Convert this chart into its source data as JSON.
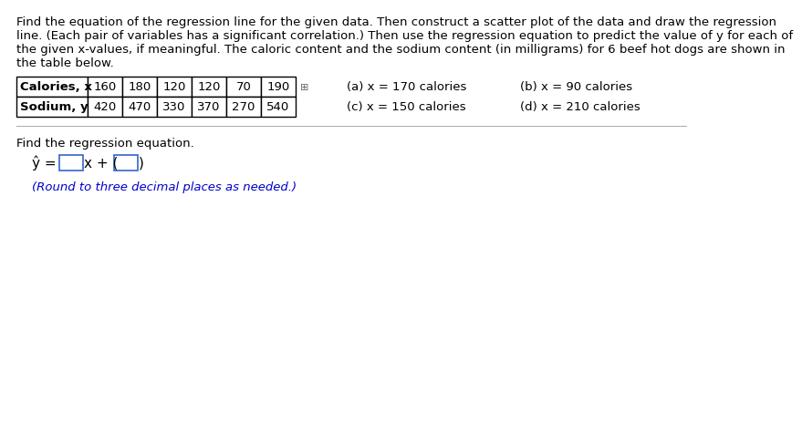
{
  "para_line1": "Find the equation of the regression line for the given data. Then construct a scatter plot of the data and draw the regression",
  "para_line2": "line. (Each pair of variables has a significant correlation.) Then use the regression equation to predict the value of y for each of",
  "para_line3": "the given x-values, if meaningful. The caloric content and the sodium content (in milligrams) for 6 beef hot dogs are shown in",
  "para_line4": "the table below.",
  "table_row1_label": "Calories, x",
  "table_row2_label": "Sodium, y",
  "table_col_values": [
    "160",
    "180",
    "120",
    "120",
    "70",
    "190"
  ],
  "table_row2_values": [
    "420",
    "470",
    "330",
    "370",
    "270",
    "540"
  ],
  "pred_a": "(a) x = 170 calories",
  "pred_b": "(b) x = 90 calories",
  "pred_c": "(c) x = 150 calories",
  "pred_d": "(d) x = 210 calories",
  "find_text": "Find the regression equation.",
  "round_text": "(Round to three decimal places as needed.)",
  "background_color": "#ffffff",
  "text_color": "#000000",
  "blue_color": "#0000cc",
  "box_border_color": "#3366cc",
  "table_border_color": "#000000",
  "font_size_para": 9.5,
  "font_size_table": 9.5,
  "font_size_pred": 9.5,
  "font_size_find": 9.5,
  "font_size_eq": 11,
  "font_size_round": 9.5
}
